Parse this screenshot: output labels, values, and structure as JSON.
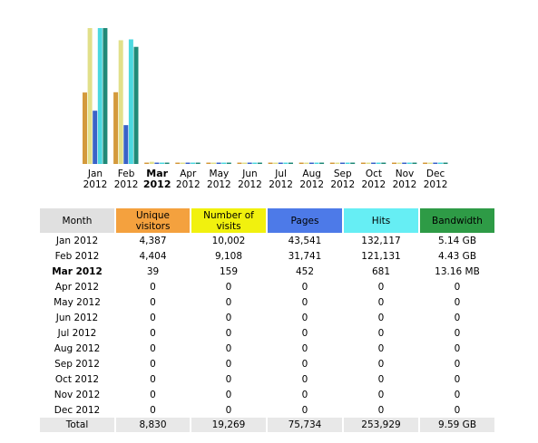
{
  "colors": {
    "unique_visitors": "#f4a13e",
    "visits": "#f1f10e",
    "pages": "#4d7ae8",
    "hits": "#66eef4",
    "bandwidth": "#2e9b46"
  },
  "chart_data": {
    "type": "bar",
    "categories": [
      [
        "Jan",
        "2012"
      ],
      [
        "Feb",
        "2012"
      ],
      [
        "Mar",
        "2012"
      ],
      [
        "Apr",
        "2012"
      ],
      [
        "May",
        "2012"
      ],
      [
        "Jun",
        "2012"
      ],
      [
        "Jul",
        "2012"
      ],
      [
        "Aug",
        "2012"
      ],
      [
        "Sep",
        "2012"
      ],
      [
        "Oct",
        "2012"
      ],
      [
        "Nov",
        "2012"
      ],
      [
        "Dec",
        "2012"
      ]
    ],
    "current_index": 2,
    "series": [
      {
        "name": "Unique visitors",
        "color": "#d49a3c",
        "values": [
          4387,
          4404,
          39,
          0,
          0,
          0,
          0,
          0,
          0,
          0,
          0,
          0
        ]
      },
      {
        "name": "Number of visits",
        "color": "#e2e08a",
        "values": [
          10002,
          9108,
          159,
          0,
          0,
          0,
          0,
          0,
          0,
          0,
          0,
          0
        ]
      },
      {
        "name": "Pages",
        "color": "#3a63c8",
        "values": [
          43541,
          31741,
          452,
          0,
          0,
          0,
          0,
          0,
          0,
          0,
          0,
          0
        ]
      },
      {
        "name": "Hits",
        "color": "#4cd8e0",
        "values": [
          132117,
          121131,
          681,
          0,
          0,
          0,
          0,
          0,
          0,
          0,
          0,
          0
        ]
      },
      {
        "name": "Bandwidth",
        "color": "#208a78",
        "values": [
          5.14,
          4.43,
          0.0128,
          0,
          0,
          0,
          0,
          0,
          0,
          0,
          0,
          0
        ]
      }
    ]
  },
  "table": {
    "headers": [
      "Month",
      "Unique visitors",
      "Number of visits",
      "Pages",
      "Hits",
      "Bandwidth"
    ],
    "rows": [
      [
        "Jan 2012",
        "4,387",
        "10,002",
        "43,541",
        "132,117",
        "5.14 GB"
      ],
      [
        "Feb 2012",
        "4,404",
        "9,108",
        "31,741",
        "121,131",
        "4.43 GB"
      ],
      [
        "Mar 2012",
        "39",
        "159",
        "452",
        "681",
        "13.16 MB"
      ],
      [
        "Apr 2012",
        "0",
        "0",
        "0",
        "0",
        "0"
      ],
      [
        "May 2012",
        "0",
        "0",
        "0",
        "0",
        "0"
      ],
      [
        "Jun 2012",
        "0",
        "0",
        "0",
        "0",
        "0"
      ],
      [
        "Jul 2012",
        "0",
        "0",
        "0",
        "0",
        "0"
      ],
      [
        "Aug 2012",
        "0",
        "0",
        "0",
        "0",
        "0"
      ],
      [
        "Sep 2012",
        "0",
        "0",
        "0",
        "0",
        "0"
      ],
      [
        "Oct 2012",
        "0",
        "0",
        "0",
        "0",
        "0"
      ],
      [
        "Nov 2012",
        "0",
        "0",
        "0",
        "0",
        "0"
      ],
      [
        "Dec 2012",
        "0",
        "0",
        "0",
        "0",
        "0"
      ]
    ],
    "total": [
      "Total",
      "8,830",
      "19,269",
      "75,734",
      "253,929",
      "9.59 GB"
    ]
  }
}
